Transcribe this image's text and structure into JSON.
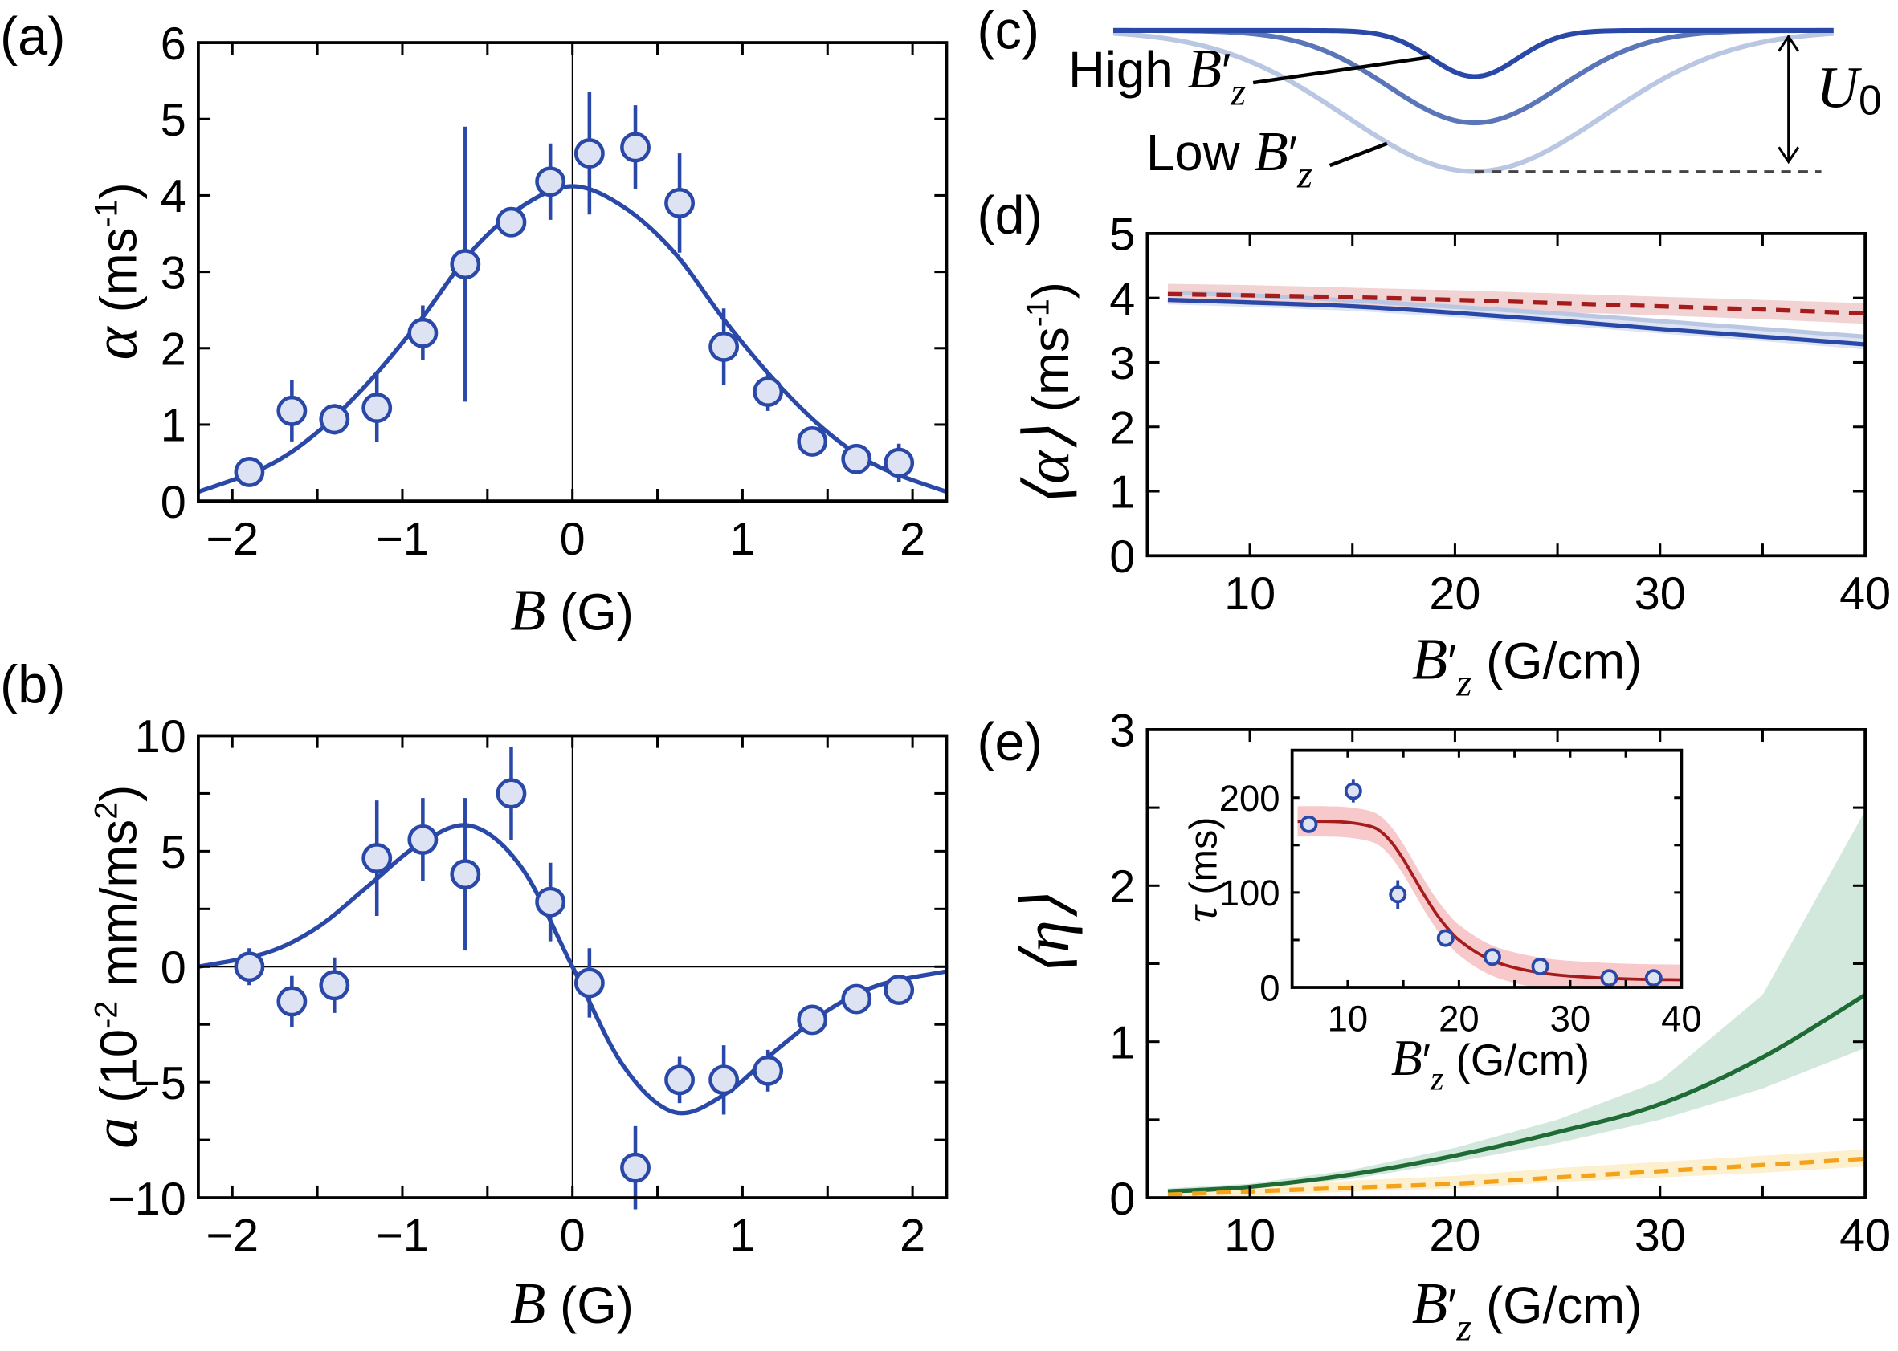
{
  "panels": {
    "a": "(a)",
    "b": "(b)",
    "c": "(c)",
    "d": "(d)",
    "e": "(e)"
  },
  "labels": {
    "a_y": {
      "sym": "α",
      "unit": " (ms",
      "sup": "-1",
      "close": ")"
    },
    "a_x": {
      "sym": "B",
      "unit": " (G)"
    },
    "b_y": {
      "sym": "a",
      "unit": " (10",
      "sup": "-2",
      "unit2": " mm/ms",
      "sup2": "2",
      "close": ")"
    },
    "b_x": {
      "sym": "B",
      "unit": " (G)"
    },
    "c_high": {
      "text": "High ",
      "sym": "B",
      "prime": "′",
      "sub": "z"
    },
    "c_low": {
      "text": "Low ",
      "sym": "B",
      "prime": "′",
      "sub": "z"
    },
    "c_u0": {
      "sym": "U",
      "sub": "0"
    },
    "d_y": {
      "sym": "⟨α⟩",
      "unit": " (ms",
      "sup": "-1",
      "close": ")"
    },
    "d_x": {
      "sym": "B",
      "prime": "′",
      "sub": "z",
      "unit": " (G/cm)"
    },
    "e_y": {
      "sym": "⟨η⟩"
    },
    "e_x": {
      "sym": "B",
      "prime": "′",
      "sub": "z",
      "unit": " (G/cm)"
    },
    "inset_y": {
      "sym": "τ",
      "unit": " (ms)"
    },
    "inset_x": {
      "sym": "B",
      "prime": "′",
      "sub": "z",
      "unit": " (G/cm)"
    }
  },
  "colors": {
    "data_blue": "#2a48a8",
    "marker_fill": "#dde3f3",
    "c_high": "#2a48a8",
    "c_mid": "#5a76b8",
    "c_low": "#bac7e2",
    "red": "#a51c1c",
    "red_band": "#f2d3d3",
    "blue_band": "#dde4f3",
    "green": "#1f6b35",
    "green_band": "#d3e8dc",
    "orange": "#f5a21b",
    "orange_band": "#fdf0cf",
    "inset_band": "#f7c9cb"
  },
  "chart_data": [
    {
      "id": "a",
      "type": "scatter",
      "xlabel": "B (G)",
      "ylabel": "α (ms-1)",
      "xlim": [
        -2.2,
        2.2
      ],
      "ylim": [
        0,
        6
      ],
      "xticks": [
        -2,
        -1,
        0,
        1,
        2
      ],
      "xtick_labels": [
        "−2",
        "−1",
        "0",
        "1",
        "2"
      ],
      "yticks": [
        0,
        1,
        2,
        3,
        4,
        5,
        6
      ],
      "ytick_labels": [
        "0",
        "1",
        "2",
        "3",
        "4",
        "5",
        "6"
      ],
      "points": [
        {
          "x": -1.9,
          "y": 0.38,
          "err": 0.08
        },
        {
          "x": -1.65,
          "y": 1.18,
          "err": 0.4
        },
        {
          "x": -1.4,
          "y": 1.07,
          "err": 0.2
        },
        {
          "x": -1.15,
          "y": 1.22,
          "err": 0.45
        },
        {
          "x": -0.88,
          "y": 2.2,
          "err": 0.36
        },
        {
          "x": -0.63,
          "y": 3.1,
          "err": 1.8
        },
        {
          "x": -0.36,
          "y": 3.65,
          "err": 0.12
        },
        {
          "x": -0.13,
          "y": 4.18,
          "err": 0.5
        },
        {
          "x": 0.1,
          "y": 4.55,
          "err": 0.8
        },
        {
          "x": 0.37,
          "y": 4.63,
          "err": 0.55
        },
        {
          "x": 0.63,
          "y": 3.9,
          "err": 0.65
        },
        {
          "x": 0.89,
          "y": 2.02,
          "err": 0.5
        },
        {
          "x": 1.15,
          "y": 1.43,
          "err": 0.25
        },
        {
          "x": 1.41,
          "y": 0.78,
          "err": 0.1
        },
        {
          "x": 1.67,
          "y": 0.55,
          "err": 0.08
        },
        {
          "x": 1.92,
          "y": 0.5,
          "err": 0.25
        }
      ],
      "fit": {
        "x": [
          -2.2,
          -1.8,
          -1.5,
          -1.2,
          -0.9,
          -0.6,
          -0.3,
          0,
          0.3,
          0.6,
          0.9,
          1.2,
          1.5,
          1.8,
          2.2
        ],
        "y": [
          0.12,
          0.45,
          0.9,
          1.55,
          2.35,
          3.25,
          3.85,
          4.12,
          3.85,
          3.25,
          2.35,
          1.55,
          0.9,
          0.45,
          0.12
        ]
      }
    },
    {
      "id": "b",
      "type": "scatter",
      "xlabel": "B (G)",
      "ylabel": "a (10-2 mm/ms2)",
      "xlim": [
        -2.2,
        2.2
      ],
      "ylim": [
        -10,
        10
      ],
      "xticks": [
        -2,
        -1,
        0,
        1,
        2
      ],
      "xtick_labels": [
        "−2",
        "−1",
        "0",
        "1",
        "2"
      ],
      "yticks": [
        -10,
        -5,
        0,
        5,
        10
      ],
      "ytick_labels": [
        "−10",
        "−5",
        "0",
        "5",
        "10"
      ],
      "points": [
        {
          "x": -1.9,
          "y": 0.0,
          "err": 0.8
        },
        {
          "x": -1.65,
          "y": -1.5,
          "err": 1.1
        },
        {
          "x": -1.4,
          "y": -0.8,
          "err": 1.2
        },
        {
          "x": -1.15,
          "y": 4.7,
          "err": 2.5
        },
        {
          "x": -0.88,
          "y": 5.5,
          "err": 1.8
        },
        {
          "x": -0.63,
          "y": 4.0,
          "err": 3.3
        },
        {
          "x": -0.36,
          "y": 7.5,
          "err": 2.0
        },
        {
          "x": -0.13,
          "y": 2.8,
          "err": 1.7
        },
        {
          "x": 0.1,
          "y": -0.7,
          "err": 1.5
        },
        {
          "x": 0.37,
          "y": -8.7,
          "err": 1.8
        },
        {
          "x": 0.63,
          "y": -4.9,
          "err": 1.0
        },
        {
          "x": 0.89,
          "y": -4.9,
          "err": 1.5
        },
        {
          "x": 1.15,
          "y": -4.5,
          "err": 0.9
        },
        {
          "x": 1.41,
          "y": -2.3,
          "err": 0.4
        },
        {
          "x": 1.67,
          "y": -1.4,
          "err": 0.4
        },
        {
          "x": 1.92,
          "y": -1.0,
          "err": 0.4
        }
      ],
      "fit": {
        "x": [
          -2.2,
          -1.8,
          -1.5,
          -1.2,
          -0.9,
          -0.6,
          -0.3,
          0,
          0.3,
          0.6,
          0.9,
          1.2,
          1.5,
          1.8,
          2.2
        ],
        "y": [
          0.0,
          0.6,
          1.7,
          3.5,
          5.3,
          6.1,
          4.3,
          0,
          -4.3,
          -6.3,
          -5.5,
          -3.6,
          -1.9,
          -0.8,
          -0.2
        ]
      }
    },
    {
      "id": "c",
      "type": "line",
      "annotations": [
        "High B′z",
        "Low B′z",
        "U0"
      ]
    },
    {
      "id": "d",
      "type": "line",
      "xlabel": "B′z (G/cm)",
      "ylabel": "⟨α⟩ (ms-1)",
      "xlim": [
        5,
        40
      ],
      "ylim": [
        0,
        5
      ],
      "xticks": [
        10,
        20,
        30,
        40
      ],
      "xtick_labels": [
        "10",
        "20",
        "30",
        "40"
      ],
      "yticks": [
        0,
        1,
        2,
        3,
        4,
        5
      ],
      "ytick_labels": [
        "0",
        "1",
        "2",
        "3",
        "4",
        "5"
      ],
      "x": [
        6,
        10,
        15,
        20,
        25,
        30,
        35,
        40
      ],
      "series": [
        {
          "style": "solid",
          "color": "#bac7e2",
          "values": [
            4.08,
            4.04,
            3.96,
            3.86,
            3.76,
            3.64,
            3.52,
            3.4
          ]
        },
        {
          "style": "band",
          "color": "#dde4f3",
          "low": [
            3.9,
            3.86,
            3.8,
            3.7,
            3.58,
            3.45,
            3.33,
            3.2
          ],
          "high": [
            4.1,
            4.06,
            3.98,
            3.88,
            3.78,
            3.66,
            3.54,
            3.42
          ]
        },
        {
          "style": "band",
          "color": "#f2d3d3",
          "low": [
            3.93,
            3.91,
            3.87,
            3.83,
            3.78,
            3.73,
            3.67,
            3.6
          ],
          "high": [
            4.22,
            4.2,
            4.16,
            4.12,
            4.07,
            4.02,
            3.97,
            3.92
          ]
        },
        {
          "style": "solid",
          "color": "#2a48a8",
          "values": [
            3.97,
            3.93,
            3.87,
            3.77,
            3.65,
            3.52,
            3.4,
            3.28
          ]
        },
        {
          "style": "dashed",
          "color": "#a51c1c",
          "values": [
            4.06,
            4.04,
            4.01,
            3.97,
            3.92,
            3.87,
            3.82,
            3.76
          ]
        }
      ]
    },
    {
      "id": "e",
      "type": "line",
      "xlabel": "B′z (G/cm)",
      "ylabel": "⟨η⟩",
      "xlim": [
        5,
        40
      ],
      "ylim": [
        0,
        3
      ],
      "xticks": [
        10,
        20,
        30,
        40
      ],
      "xtick_labels": [
        "10",
        "20",
        "30",
        "40"
      ],
      "yticks": [
        0,
        1,
        2,
        3
      ],
      "ytick_labels": [
        "0",
        "1",
        "2",
        "3"
      ],
      "x": [
        6,
        10,
        15,
        20,
        25,
        30,
        35,
        40
      ],
      "series": [
        {
          "style": "band",
          "color": "#d3e8dc",
          "low": [
            0.03,
            0.06,
            0.12,
            0.23,
            0.35,
            0.5,
            0.7,
            0.96
          ],
          "high": [
            0.06,
            0.09,
            0.18,
            0.32,
            0.5,
            0.75,
            1.3,
            2.48
          ]
        },
        {
          "style": "band",
          "color": "#fdf0cf",
          "low": [
            0.0,
            0.01,
            0.04,
            0.06,
            0.1,
            0.13,
            0.16,
            0.2
          ],
          "high": [
            0.04,
            0.07,
            0.11,
            0.14,
            0.19,
            0.23,
            0.27,
            0.31
          ]
        },
        {
          "style": "solid",
          "color": "#1f6b35",
          "values": [
            0.04,
            0.07,
            0.15,
            0.27,
            0.42,
            0.6,
            0.9,
            1.3
          ]
        },
        {
          "style": "dashed",
          "color": "#f5a21b",
          "values": [
            0.02,
            0.04,
            0.065,
            0.09,
            0.13,
            0.17,
            0.21,
            0.25
          ]
        }
      ]
    },
    {
      "id": "e_inset",
      "type": "scatter",
      "xlabel": "B′z (G/cm)",
      "ylabel": "τ (ms)",
      "xlim": [
        5,
        40
      ],
      "ylim": [
        0,
        250
      ],
      "xticks": [
        10,
        20,
        30,
        40
      ],
      "xtick_labels": [
        "10",
        "20",
        "30",
        "40"
      ],
      "yticks": [
        0,
        100,
        200
      ],
      "ytick_labels": [
        "0",
        "100",
        "200"
      ],
      "points": [
        {
          "x": 6.5,
          "y": 172,
          "err": 4
        },
        {
          "x": 10.5,
          "y": 207,
          "err": 12
        },
        {
          "x": 14.5,
          "y": 98,
          "err": 15
        },
        {
          "x": 18.8,
          "y": 52,
          "err": 4
        },
        {
          "x": 23,
          "y": 32,
          "err": 3
        },
        {
          "x": 27.3,
          "y": 22,
          "err": 3
        },
        {
          "x": 33.5,
          "y": 10,
          "err": 2
        },
        {
          "x": 37.5,
          "y": 10,
          "err": 2
        }
      ],
      "fit": {
        "x": [
          5.5,
          8,
          10,
          12,
          13,
          14,
          15,
          16,
          17,
          18,
          19,
          20,
          22,
          24,
          27,
          30,
          35,
          40
        ],
        "y": [
          175,
          175,
          174,
          170,
          164,
          152,
          135,
          115,
          95,
          77,
          62,
          50,
          34,
          24,
          16,
          12,
          9,
          8
        ]
      },
      "fit_band": 16
    }
  ]
}
